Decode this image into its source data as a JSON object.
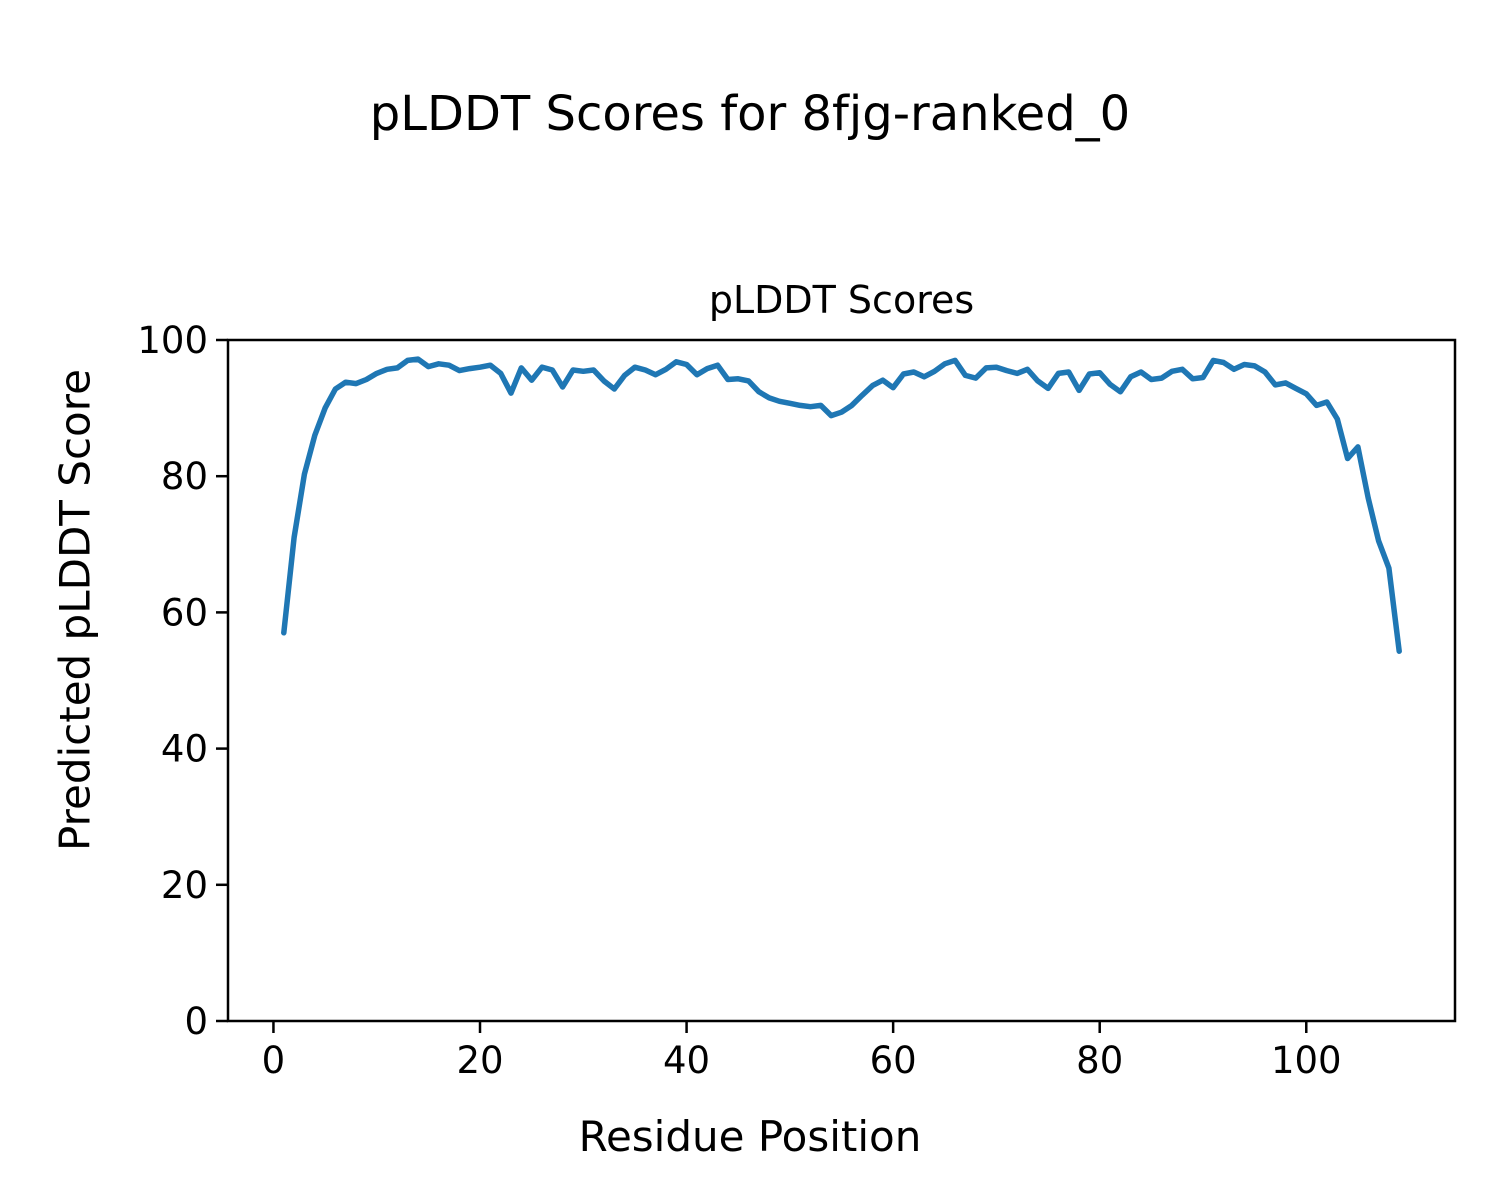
{
  "figure": {
    "suptitle": "pLDDT Scores for 8fjg-ranked_0"
  },
  "chart_data": {
    "type": "line",
    "title": "pLDDT Scores",
    "xlabel": "Residue Position",
    "ylabel": "Predicted pLDDT Score",
    "x_start": 1,
    "x_step": 1,
    "series": [
      {
        "name": "pLDDT",
        "color": "#1f77b4",
        "values": [
          57.0,
          71.0,
          80.3,
          86.0,
          90.0,
          92.8,
          93.8,
          93.6,
          94.2,
          95.1,
          95.7,
          95.9,
          97.0,
          97.2,
          96.1,
          96.5,
          96.3,
          95.5,
          95.8,
          96.0,
          96.3,
          95.1,
          92.2,
          95.9,
          94.1,
          96.0,
          95.6,
          93.1,
          95.6,
          95.4,
          95.6,
          94.0,
          92.8,
          94.8,
          96.0,
          95.6,
          94.9,
          95.7,
          96.8,
          96.4,
          94.9,
          95.8,
          96.3,
          94.2,
          94.3,
          94.0,
          92.4,
          91.5,
          91.0,
          90.7,
          90.4,
          90.2,
          90.4,
          88.9,
          89.4,
          90.4,
          91.9,
          93.3,
          94.1,
          93.0,
          95.0,
          95.3,
          94.6,
          95.4,
          96.5,
          97.0,
          94.8,
          94.4,
          95.9,
          96.0,
          95.5,
          95.1,
          95.7,
          94.0,
          92.9,
          95.1,
          95.3,
          92.6,
          95.0,
          95.2,
          93.5,
          92.4,
          94.6,
          95.3,
          94.2,
          94.4,
          95.4,
          95.7,
          94.3,
          94.5,
          97.0,
          96.7,
          95.7,
          96.4,
          96.2,
          95.3,
          93.4,
          93.7,
          92.9,
          92.1,
          90.4,
          90.9,
          88.4,
          82.6,
          84.3,
          76.8,
          70.5,
          66.5,
          54.3
        ]
      }
    ],
    "xlim": [
      -4.4,
      114.4
    ],
    "ylim": [
      0,
      100
    ],
    "x_ticks": [
      0,
      20,
      40,
      60,
      80,
      100
    ],
    "y_ticks": [
      0,
      20,
      40,
      60,
      80,
      100
    ],
    "grid": false,
    "legend": "none",
    "line_width": 5.5,
    "background": "#ffffff",
    "text_color": "#000000",
    "axis_color": "#000000"
  }
}
